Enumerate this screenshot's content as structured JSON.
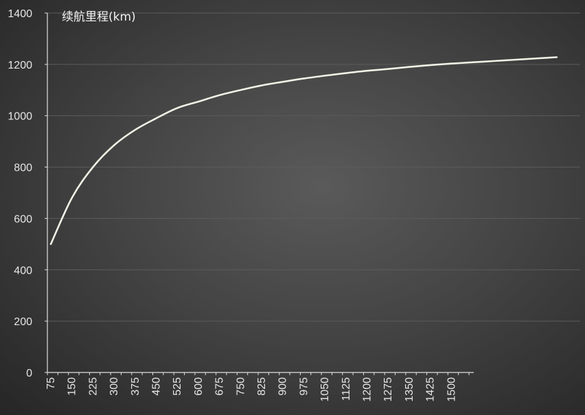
{
  "chart_data": {
    "type": "line",
    "title": "续航里程(km)",
    "xlabel": "",
    "ylabel": "",
    "ylim": [
      0,
      1400
    ],
    "y_ticks": [
      0,
      200,
      400,
      600,
      800,
      1000,
      1200,
      1400
    ],
    "x_tick_labels": [
      "75",
      "150",
      "225",
      "300",
      "375",
      "450",
      "525",
      "600",
      "675",
      "750",
      "825",
      "900",
      "975",
      "1050",
      "1125",
      "1200",
      "1275",
      "1350",
      "1425",
      "1500"
    ],
    "grid": true,
    "legend": "none",
    "colors": {
      "line": "#f1f1e6",
      "axis": "#e0e0e0",
      "grid": "#5c5c5c",
      "text": "#e6e6e6"
    },
    "series": [
      {
        "x": [
          75,
          150,
          225,
          300,
          375,
          450,
          525,
          600,
          675,
          750,
          825,
          900,
          975,
          1050,
          1125,
          1200,
          1275,
          1350,
          1425,
          1500,
          1575,
          1650,
          1725,
          1800,
          1875
        ],
        "values": [
          500,
          680,
          800,
          885,
          945,
          990,
          1030,
          1055,
          1080,
          1100,
          1118,
          1132,
          1145,
          1156,
          1166,
          1175,
          1182,
          1190,
          1197,
          1203,
          1208,
          1213,
          1218,
          1223,
          1228
        ]
      }
    ]
  }
}
